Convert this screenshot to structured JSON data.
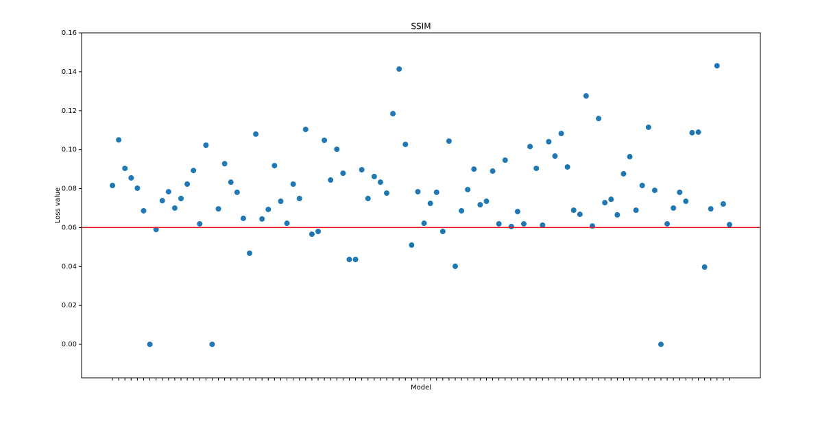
{
  "chart_data": {
    "type": "scatter",
    "title": "SSIM",
    "x_label": "Model",
    "y_label": "Loss value",
    "categories": [
      null,
      null,
      null,
      null,
      null,
      null,
      null,
      null,
      null,
      null,
      null,
      null,
      null,
      null,
      null,
      null,
      null,
      null,
      null,
      null,
      null,
      null,
      null,
      null,
      null,
      null,
      null,
      null,
      null,
      null,
      null,
      null,
      null,
      null,
      null,
      null,
      null,
      null,
      null,
      null,
      null,
      null,
      null,
      null,
      null,
      null,
      null,
      null,
      null,
      null,
      null,
      null,
      null,
      null,
      null,
      null,
      null,
      null,
      null,
      null,
      null,
      null,
      null,
      null,
      null,
      null,
      null,
      null,
      null,
      null,
      null,
      null,
      null,
      null,
      null,
      null,
      null,
      null,
      null,
      null,
      null,
      null,
      null,
      null,
      null,
      null,
      null,
      null,
      null,
      null,
      null,
      null,
      null,
      null,
      null,
      null,
      null,
      null,
      null,
      null
    ],
    "values": [
      0.0816,
      0.105,
      0.0904,
      0.0855,
      0.0802,
      0.0686,
      0.0,
      0.059,
      0.0738,
      0.0784,
      0.07,
      0.0749,
      0.0823,
      0.0893,
      0.0619,
      0.1023,
      0.0,
      0.0696,
      0.0928,
      0.0833,
      0.0781,
      0.0647,
      0.0468,
      0.108,
      0.0644,
      0.0693,
      0.0918,
      0.0735,
      0.0622,
      0.0823,
      0.0749,
      0.1104,
      0.0566,
      0.058,
      0.1048,
      0.0844,
      0.1002,
      0.0879,
      0.0436,
      0.0436,
      0.0897,
      0.0749,
      0.0862,
      0.0833,
      0.0777,
      0.1185,
      0.1414,
      0.1027,
      0.051,
      0.0784,
      0.0622,
      0.0724,
      0.0781,
      0.058,
      0.1044,
      0.0401,
      0.0686,
      0.0795,
      0.09,
      0.0717,
      0.0735,
      0.089,
      0.0619,
      0.0946,
      0.0605,
      0.0682,
      0.0619,
      0.1016,
      0.0904,
      0.0612,
      0.1041,
      0.0967,
      0.1083,
      0.0911,
      0.0689,
      0.0668,
      0.1276,
      0.0608,
      0.116,
      0.0728,
      0.0745,
      0.0665,
      0.0876,
      0.0964,
      0.0689,
      0.0816,
      0.1115,
      0.0791,
      0.0,
      0.0619,
      0.07,
      0.0781,
      0.0735,
      0.1087,
      0.109,
      0.0397,
      0.0696,
      0.1431,
      0.0721,
      0.0615
    ],
    "color": "#1f77b4",
    "ylim": [
      -0.0172,
      0.16
    ],
    "yticks": [
      {
        "value": 0,
        "label": "0.00"
      },
      0.02,
      0.04,
      0.06,
      0.08,
      {
        "value": 0.1,
        "label": "0.10"
      },
      0.12,
      0.14,
      0.16
    ],
    "reference_line": {
      "value": 0.06,
      "color": "#e41a1c"
    },
    "grid": false
  }
}
